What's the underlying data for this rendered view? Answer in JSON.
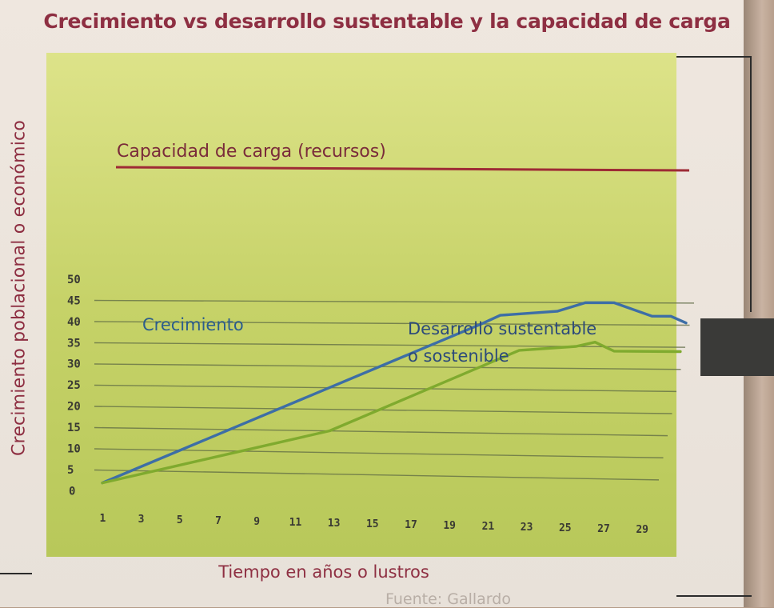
{
  "title": "Crecimiento vs desarrollo sustentable y la capacidad de carga",
  "source_partial": "Fuente: Gallardo",
  "chart_data": {
    "type": "line",
    "ylabel": "Crecimiento poblacional o económico",
    "xlabel": "Tiempo en años o lustros",
    "ylim": [
      0,
      50
    ],
    "xlim": [
      1,
      31
    ],
    "y_ticks": [
      "0",
      "5",
      "10",
      "15",
      "20",
      "25",
      "30",
      "35",
      "40",
      "45",
      "50"
    ],
    "x_ticks": [
      "1",
      "3",
      "5",
      "7",
      "9",
      "11",
      "13",
      "15",
      "17",
      "19",
      "21",
      "23",
      "25",
      "27",
      "29"
    ],
    "grid": true,
    "series": [
      {
        "name": "Crecimiento",
        "color": "#3d6ea6",
        "points": [
          [
            1,
            2
          ],
          [
            21,
            40
          ],
          [
            22,
            42
          ],
          [
            25,
            43
          ],
          [
            26.5,
            45
          ],
          [
            28,
            45
          ],
          [
            30,
            42
          ],
          [
            31,
            42
          ],
          [
            31.8,
            40.5
          ]
        ]
      },
      {
        "name": "Desarrollo sustentable o sostenible",
        "color": "#7faa2e",
        "points": [
          [
            1,
            2
          ],
          [
            13,
            15
          ],
          [
            23,
            34
          ],
          [
            26,
            35
          ],
          [
            27,
            36
          ],
          [
            28,
            34
          ],
          [
            31.5,
            34
          ]
        ]
      }
    ],
    "reference_lines": [
      {
        "label": "Capacidad de carga (recursos)",
        "y": 40,
        "color": "#9e2b35"
      }
    ],
    "annotations": {
      "capacidad": "Capacidad de carga (recursos)",
      "crecimiento": "Crecimiento",
      "desarrollo_line1": "Desarrollo sustentable",
      "desarrollo_line2": "o sostenible"
    }
  }
}
